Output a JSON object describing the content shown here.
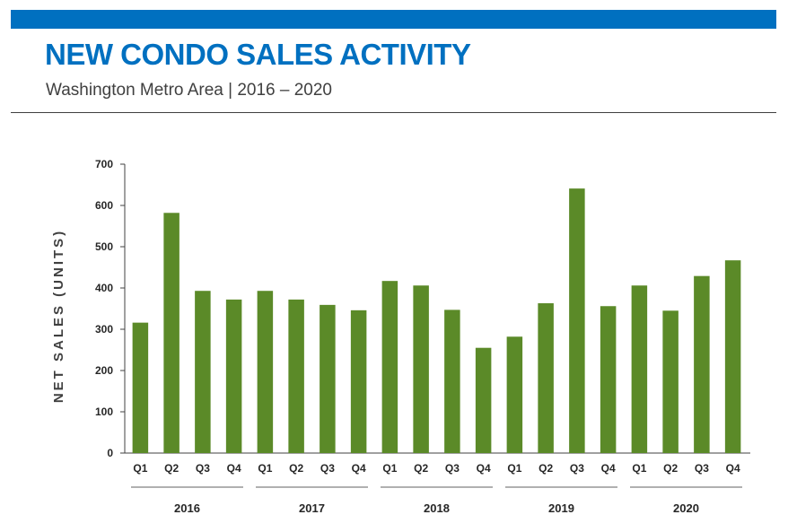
{
  "header": {
    "title": "NEW CONDO SALES ACTIVITY",
    "subtitle": "Washington Metro Area  |  2016 – 2020",
    "accent_color": "#0070c0",
    "title_color": "#0070c0"
  },
  "chart_data": {
    "type": "bar",
    "title": "",
    "xlabel": "",
    "ylabel": "NET SALES (UNITS)",
    "ylim": [
      0,
      700
    ],
    "yticks": [
      0,
      100,
      200,
      300,
      400,
      500,
      600,
      700
    ],
    "grid": false,
    "bar_color": "#5b8a28",
    "groups": [
      {
        "label": "2016",
        "categories": [
          "Q1",
          "Q2",
          "Q3",
          "Q4"
        ],
        "values": [
          316,
          582,
          393,
          372
        ]
      },
      {
        "label": "2017",
        "categories": [
          "Q1",
          "Q2",
          "Q3",
          "Q4"
        ],
        "values": [
          393,
          372,
          359,
          346
        ]
      },
      {
        "label": "2018",
        "categories": [
          "Q1",
          "Q2",
          "Q3",
          "Q4"
        ],
        "values": [
          417,
          406,
          347,
          255
        ]
      },
      {
        "label": "2019",
        "categories": [
          "Q1",
          "Q2",
          "Q3",
          "Q4"
        ],
        "values": [
          282,
          363,
          641,
          356
        ]
      },
      {
        "label": "2020",
        "categories": [
          "Q1",
          "Q2",
          "Q3",
          "Q4"
        ],
        "values": [
          406,
          345,
          429,
          467
        ]
      }
    ]
  }
}
